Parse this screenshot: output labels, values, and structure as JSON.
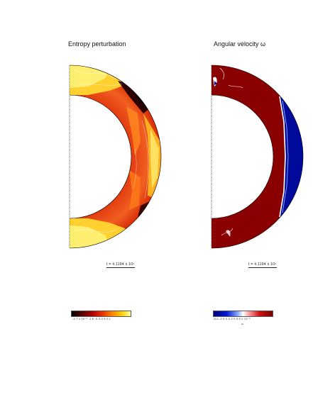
{
  "panels": [
    {
      "title": "Entropy perturbation",
      "time_label": "t = 4.1184 x 10⁵",
      "colorbar_ticks": "-2.7 x 10⁻²  -1.5  -0.3  0.9  2.1"
    },
    {
      "title": "Angular velocity ω",
      "time_label": "t = 4.1184 x 10⁵",
      "colorbar_ticks": "-5.0  -2.5  0.0  2.5  5.0 x 10⁻³",
      "colorbar_symbol": "ω"
    }
  ],
  "colors": {
    "entropy_low": "#000000",
    "entropy_mid": "#e83000",
    "entropy_high": "#ffffa0",
    "omega_negative": "#000a9a",
    "omega_positive": "#8a0000"
  }
}
